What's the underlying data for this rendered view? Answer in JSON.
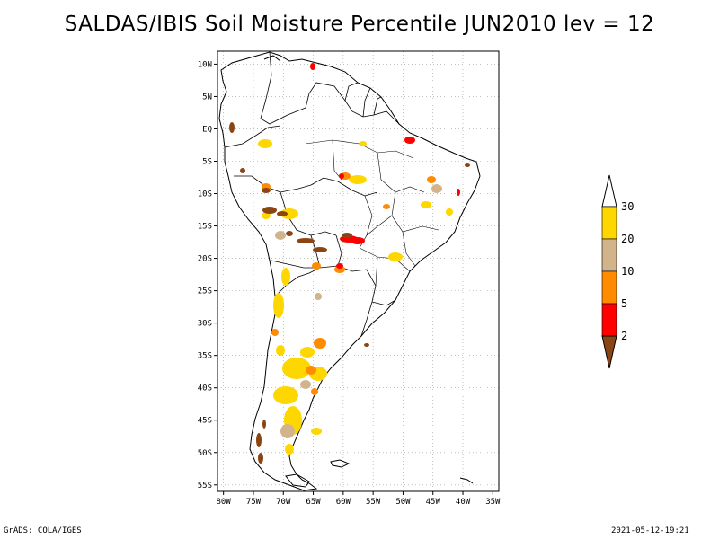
{
  "title": "SALDAS/IBIS Soil Moisture Percentile JUN2010 lev = 12",
  "footer": {
    "left": "GrADS: COLA/IGES",
    "right": "2021-05-12-19:21"
  },
  "map": {
    "lon_labels": [
      "80W",
      "75W",
      "70W",
      "65W",
      "60W",
      "55W",
      "50W",
      "45W",
      "40W",
      "35W"
    ],
    "lat_labels": [
      "10N",
      "5N",
      "EQ",
      "5S",
      "10S",
      "15S",
      "20S",
      "25S",
      "30S",
      "35S",
      "40S",
      "45S",
      "50S",
      "55S"
    ],
    "lon_range": [
      -81,
      -34
    ],
    "lat_range": [
      12,
      -56
    ],
    "grid": "dotted"
  },
  "legend": {
    "labels": [
      "2",
      "5",
      "10",
      "20",
      "30"
    ],
    "colors": [
      "#8b4513",
      "#ff0000",
      "#ff8c00",
      "#d2b48c",
      "#ffd700",
      "#ffffff"
    ]
  }
}
